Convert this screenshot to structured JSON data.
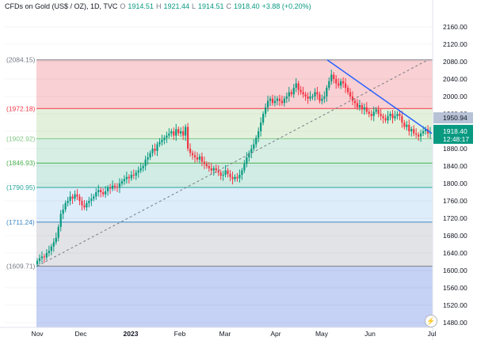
{
  "header": {
    "symbol": "CFDs on Gold (US$ / OZ), 1D, TVC",
    "open_label": "O",
    "open": "1914.51",
    "high_label": "H",
    "high": "1921.44",
    "low_label": "L",
    "low": "1914.51",
    "close_label": "C",
    "close": "1918.40",
    "change": "+3.88 (+0.20%)"
  },
  "colors": {
    "up": "#089981",
    "down": "#f23645",
    "trendline": "#2962ff",
    "price_label_bg": "#089981",
    "level_label_bg": "#b7c2d6"
  },
  "chart_data": {
    "type": "candlestick",
    "ylim": [
      1460,
      2180
    ],
    "y_ticks": [
      2160,
      2120,
      2080,
      2040,
      2000,
      1960,
      1920,
      1880,
      1840,
      1800,
      1760,
      1720,
      1680,
      1640,
      1600,
      1560,
      1520,
      1480
    ],
    "x_labels": [
      "Nov",
      "Dec",
      "2023",
      "Feb",
      "Mar",
      "Apr",
      "May",
      "Jun",
      "Jul"
    ],
    "fib_levels": [
      {
        "label": "(2084.15)",
        "value": 2084.15,
        "line": "#787b86",
        "fill": "#f9d0d3"
      },
      {
        "label": "(1972.18)",
        "value": 1972.18,
        "line": "#f23645",
        "fill": "#e3f1dc"
      },
      {
        "label": "(1902.92)",
        "value": 1902.92,
        "line": "#81c784",
        "fill": "#d6eee3"
      },
      {
        "label": "(1846.93)",
        "value": 1846.93,
        "line": "#4caf50",
        "fill": "#d0ece4"
      },
      {
        "label": "(1790.95)",
        "value": 1790.95,
        "line": "#26a69a",
        "fill": "#deedfa"
      },
      {
        "label": "(1711.24)",
        "value": 1711.24,
        "line": "#3f88c5",
        "fill": "#e2e3e6"
      },
      {
        "label": "(1609.71)",
        "value": 1609.71,
        "line": "#787b86",
        "fill": "#c5d1f5"
      }
    ],
    "current_price": "1918.40",
    "countdown": "12:48:17",
    "trendline_price": "1950.94",
    "trendline": [
      {
        "date": "May",
        "value": 2084
      },
      {
        "date": "Jul",
        "value": 1915
      }
    ],
    "diagonal": [
      {
        "date": "Nov",
        "value": 1610
      },
      {
        "date": "Jul",
        "value": 2085
      }
    ],
    "closes": [
      1622,
      1628,
      1632,
      1630,
      1640,
      1645,
      1655,
      1665,
      1675,
      1700,
      1730,
      1740,
      1755,
      1760,
      1770,
      1765,
      1775,
      1770,
      1760,
      1750,
      1745,
      1755,
      1760,
      1765,
      1770,
      1780,
      1785,
      1780,
      1775,
      1782,
      1790,
      1788,
      1795,
      1792,
      1790,
      1800,
      1805,
      1810,
      1815,
      1812,
      1820,
      1818,
      1825,
      1830,
      1835,
      1840,
      1855,
      1860,
      1870,
      1880,
      1875,
      1890,
      1895,
      1900,
      1905,
      1910,
      1915,
      1920,
      1910,
      1925,
      1915,
      1920,
      1910,
      1930,
      1880,
      1870,
      1865,
      1860,
      1855,
      1862,
      1850,
      1845,
      1840,
      1835,
      1830,
      1835,
      1830,
      1825,
      1818,
      1820,
      1830,
      1822,
      1815,
      1810,
      1815,
      1812,
      1820,
      1830,
      1845,
      1860,
      1870,
      1880,
      1890,
      1905,
      1920,
      1940,
      1960,
      1975,
      1990,
      1995,
      1985,
      1990,
      1995,
      1990,
      1985,
      1995,
      2000,
      2010,
      2005,
      2020,
      2030,
      2015,
      2010,
      2005,
      2000,
      1995,
      2000,
      2000,
      2010,
      2005,
      1990,
      1995,
      2000,
      2020,
      2035,
      2050,
      2040,
      2030,
      2025,
      2035,
      2030,
      2020,
      2010,
      2000,
      1990,
      1985,
      1975,
      1980,
      1970,
      1975,
      1965,
      1960,
      1955,
      1965,
      1970,
      1960,
      1955,
      1950,
      1945,
      1955,
      1960,
      1950,
      1955,
      1960,
      1955,
      1940,
      1930,
      1935,
      1920,
      1925,
      1915,
      1912,
      1908,
      1915,
      1920,
      1925,
      1915,
      1918
    ]
  }
}
